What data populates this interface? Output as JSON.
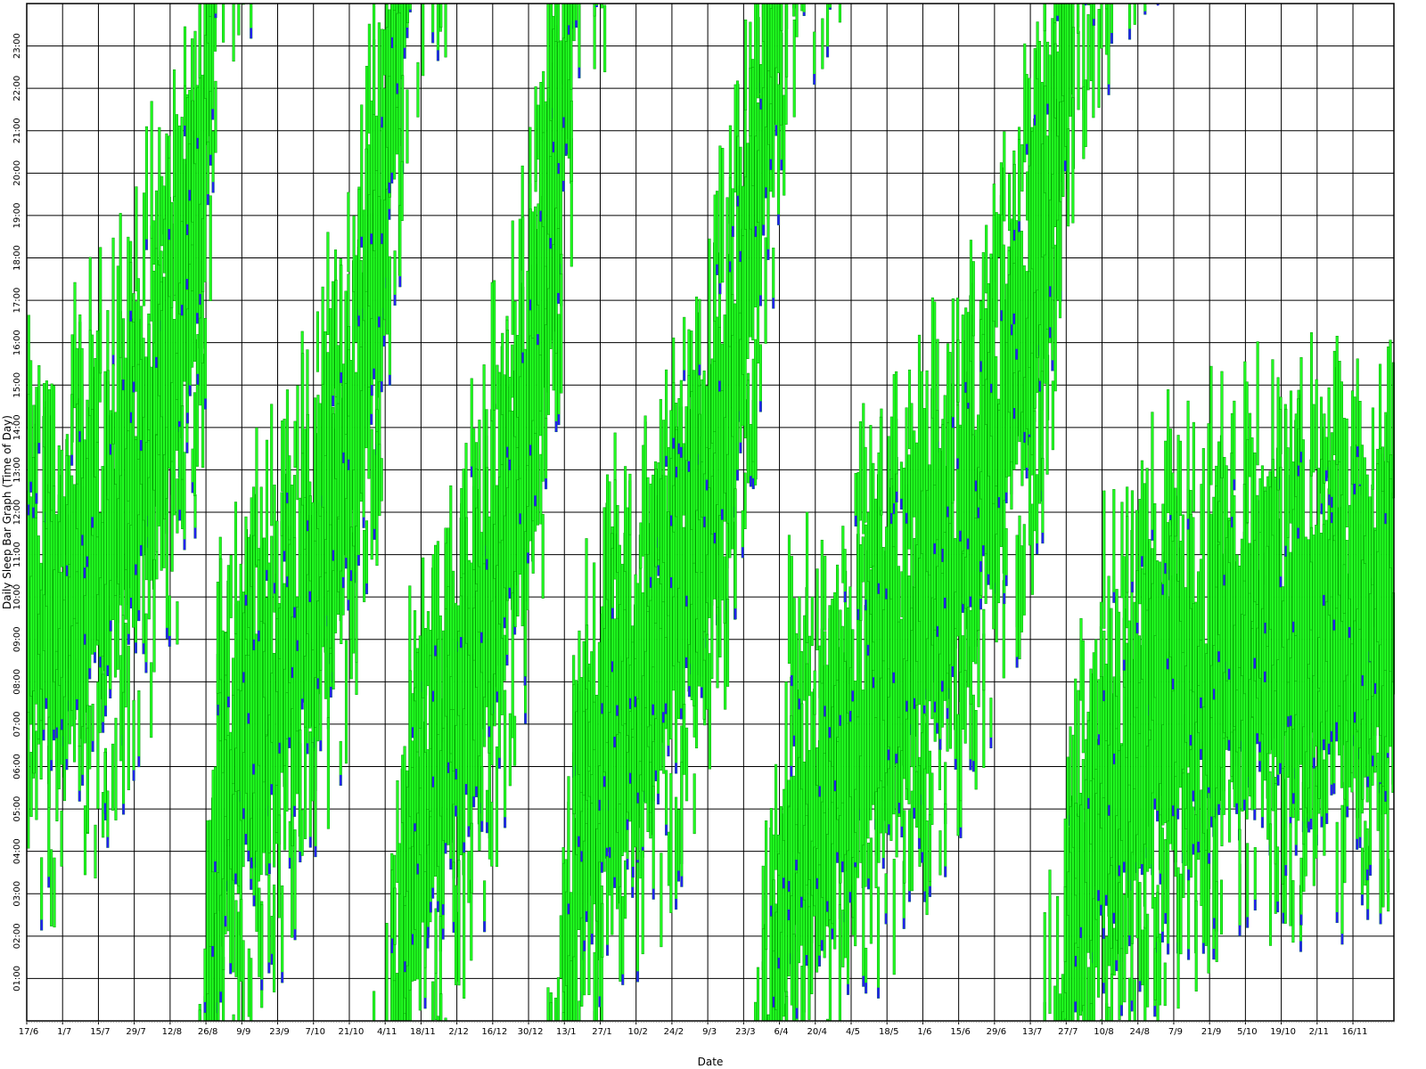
{
  "chart_data": {
    "type": "bar",
    "description_kind": "daily sleep bar graph (time-of-day floating bars)",
    "xlabel": "Date",
    "ylabel": "Daily Sleep Bar Graph (Time of Day)",
    "x_tick_labels": [
      "17/6",
      "1/7",
      "15/7",
      "29/7",
      "12/8",
      "26/8",
      "9/9",
      "23/9",
      "7/10",
      "21/10",
      "4/11",
      "18/11",
      "2/12",
      "16/12",
      "30/12",
      "13/1",
      "27/1",
      "10/2",
      "24/2",
      "9/3",
      "23/3",
      "6/4",
      "20/4",
      "4/5",
      "18/5",
      "1/6",
      "15/6",
      "29/6",
      "13/7",
      "27/7",
      "10/8",
      "24/8",
      "7/9",
      "21/9",
      "5/10",
      "19/10",
      "2/11",
      "16/11"
    ],
    "y_tick_labels": [
      "01:00",
      "02:00",
      "03:00",
      "04:00",
      "05:00",
      "06:00",
      "07:00",
      "08:00",
      "09:00",
      "10:00",
      "11:00",
      "12:00",
      "13:00",
      "14:00",
      "15:00",
      "16:00",
      "17:00",
      "18:00",
      "19:00",
      "20:00",
      "21:00",
      "22:00",
      "23:00"
    ],
    "ylim": [
      0,
      24
    ],
    "x_range_days": [
      0,
      534
    ],
    "grid": true,
    "colors": {
      "sleep": "#22ff22",
      "sleep_edge": "#009900",
      "wake_marker": "#2222ee",
      "grid": "#000000",
      "background": "#ffffff"
    },
    "phase_track": [
      {
        "day": 0,
        "hour": 8.0
      },
      {
        "day": 14,
        "hour": 8.2
      },
      {
        "day": 28,
        "hour": 9.5
      },
      {
        "day": 42,
        "hour": 11.5
      },
      {
        "day": 56,
        "hour": 14.0
      },
      {
        "day": 68,
        "hour": 18.5
      },
      {
        "day": 74,
        "hour": 3.0
      },
      {
        "day": 86,
        "hour": 5.0
      },
      {
        "day": 100,
        "hour": 7.0
      },
      {
        "day": 114,
        "hour": 9.5
      },
      {
        "day": 128,
        "hour": 13.0
      },
      {
        "day": 138,
        "hour": 17.0
      },
      {
        "day": 144,
        "hour": 22.0
      },
      {
        "day": 148,
        "hour": 2.0
      },
      {
        "day": 162,
        "hour": 4.5
      },
      {
        "day": 176,
        "hour": 7.5
      },
      {
        "day": 190,
        "hour": 11.0
      },
      {
        "day": 202,
        "hour": 15.5
      },
      {
        "day": 212,
        "hour": 22.5
      },
      {
        "day": 215,
        "hour": 3.0
      },
      {
        "day": 230,
        "hour": 5.0
      },
      {
        "day": 244,
        "hour": 7.0
      },
      {
        "day": 258,
        "hour": 9.5
      },
      {
        "day": 272,
        "hour": 13.0
      },
      {
        "day": 284,
        "hour": 17.5
      },
      {
        "day": 292,
        "hour": 22.5
      },
      {
        "day": 297,
        "hour": 2.5
      },
      {
        "day": 311,
        "hour": 4.0
      },
      {
        "day": 325,
        "hour": 6.0
      },
      {
        "day": 339,
        "hour": 7.0
      },
      {
        "day": 353,
        "hour": 8.5
      },
      {
        "day": 367,
        "hour": 10.5
      },
      {
        "day": 381,
        "hour": 13.0
      },
      {
        "day": 395,
        "hour": 16.5
      },
      {
        "day": 405,
        "hour": 21.5
      },
      {
        "day": 410,
        "hour": 2.0
      },
      {
        "day": 424,
        "hour": 4.0
      },
      {
        "day": 438,
        "hour": 5.5
      },
      {
        "day": 452,
        "hour": 6.5
      },
      {
        "day": 466,
        "hour": 7.0
      },
      {
        "day": 480,
        "hour": 7.5
      },
      {
        "day": 494,
        "hour": 7.5
      },
      {
        "day": 508,
        "hour": 7.5
      },
      {
        "day": 522,
        "hour": 7.5
      },
      {
        "day": 534,
        "hour": 8.0
      }
    ],
    "bars_per_day": 4,
    "typical_main_sleep_hours": 7.5,
    "typical_nap_hours": [
      1.0,
      3.5
    ]
  }
}
